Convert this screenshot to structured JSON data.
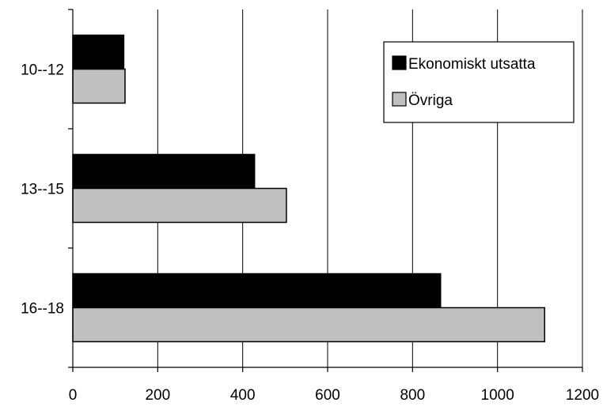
{
  "chart_data": {
    "type": "bar",
    "orientation": "horizontal",
    "categories": [
      "10--12",
      "13--15",
      "16--18"
    ],
    "series": [
      {
        "name": "Ekonomiskt utsatta",
        "values": [
          120,
          428,
          866
        ],
        "color": "#000000"
      },
      {
        "name": "Övriga",
        "values": [
          123,
          503,
          1111
        ],
        "color": "#c0c0c0"
      }
    ],
    "xlim": [
      0,
      1200
    ],
    "xticks": [
      "0",
      "200",
      "400",
      "600",
      "800",
      "1000",
      "1200"
    ],
    "title": "",
    "xlabel": "",
    "ylabel": "",
    "grid": "vertical",
    "legend_position": "top-right"
  }
}
